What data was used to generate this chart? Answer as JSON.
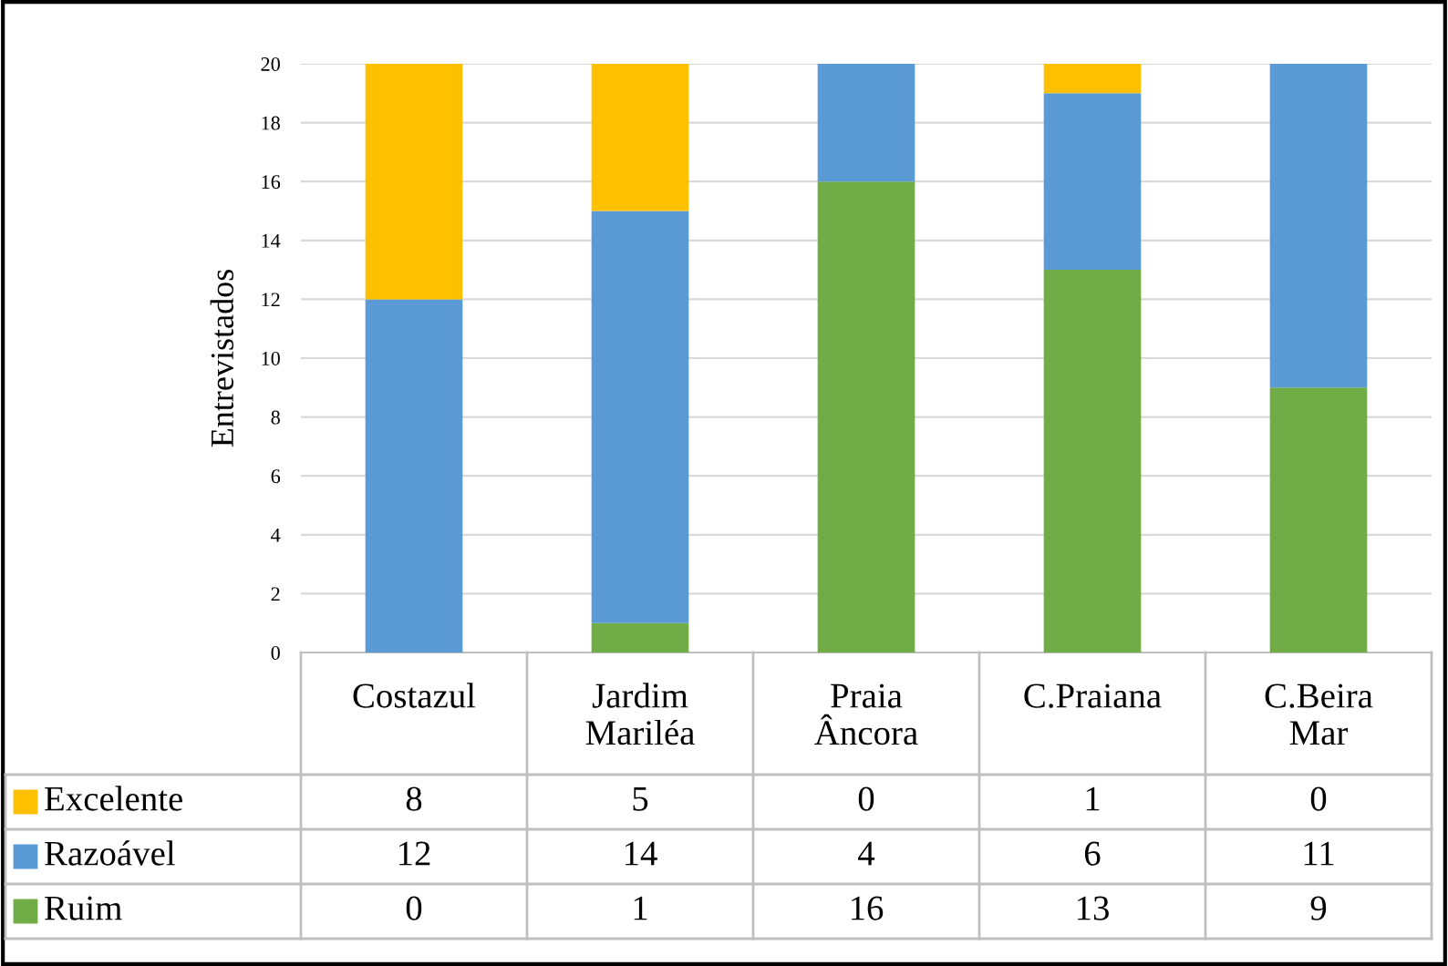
{
  "chart_data": {
    "type": "bar",
    "stacked": true,
    "ylabel": "Entrevistados",
    "categories": [
      "Costazul",
      "Jardim\nMariléa",
      "Praia\nÂncora",
      "C.Praiana",
      "C.Beira\nMar"
    ],
    "series": [
      {
        "name": "Ruim",
        "color": "#70ad47",
        "values": [
          0,
          1,
          16,
          13,
          9
        ]
      },
      {
        "name": "Razoável",
        "color": "#5b9bd5",
        "values": [
          12,
          14,
          4,
          6,
          11
        ]
      },
      {
        "name": "Excelente",
        "color": "#ffc000",
        "values": [
          8,
          5,
          0,
          1,
          0
        ]
      }
    ],
    "ylim": [
      0,
      20
    ],
    "yticks": [
      0,
      2,
      4,
      6,
      8,
      10,
      12,
      14,
      16,
      18,
      20
    ],
    "grid": "y",
    "legend": "bottom",
    "data_labels": true
  }
}
